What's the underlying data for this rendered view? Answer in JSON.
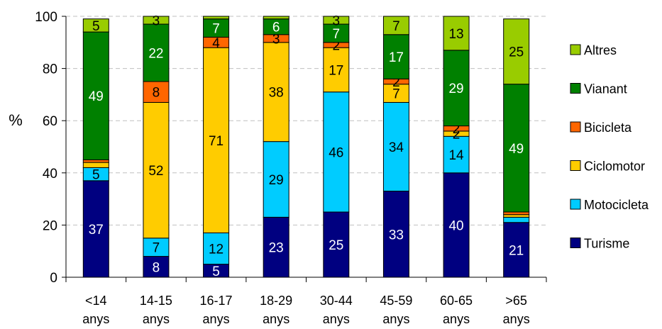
{
  "chart_data": {
    "type": "bar",
    "stacked": true,
    "ylabel": "%",
    "ylim": [
      0,
      100
    ],
    "yticks": [
      "0",
      "20",
      "40",
      "60",
      "80",
      "100"
    ],
    "grid": true,
    "legend_position": "right",
    "categories": [
      {
        "line1": "<14",
        "line2": "anys"
      },
      {
        "line1": "14-15",
        "line2": "anys"
      },
      {
        "line1": "16-17",
        "line2": "anys"
      },
      {
        "line1": "18-29",
        "line2": "anys"
      },
      {
        "line1": "30-44",
        "line2": "anys"
      },
      {
        "line1": "45-59",
        "line2": "anys"
      },
      {
        "line1": "60-65",
        "line2": "anys"
      },
      {
        "line1": ">65",
        "line2": "anys"
      }
    ],
    "series": [
      {
        "name": "Turisme",
        "color": "#000080",
        "label_color": "#ffffff",
        "values": [
          37,
          8,
          5,
          23,
          25,
          33,
          40,
          21
        ],
        "labels": [
          "37",
          "8",
          "5",
          "23",
          "25",
          "33",
          "40",
          "21"
        ]
      },
      {
        "name": "Motocicleta",
        "color": "#00ccff",
        "label_color": "#000000",
        "values": [
          5,
          7,
          12,
          29,
          46,
          34,
          14,
          2
        ],
        "labels": [
          "5",
          "7",
          "12",
          "29",
          "46",
          "34",
          "14",
          ""
        ]
      },
      {
        "name": "Ciclomotor",
        "color": "#ffcc00",
        "label_color": "#000000",
        "values": [
          2,
          52,
          71,
          38,
          17,
          7,
          2,
          1
        ],
        "labels": [
          "",
          "52",
          "71",
          "38",
          "17",
          "7",
          "2",
          ""
        ]
      },
      {
        "name": "Bicicleta",
        "color": "#ff6600",
        "label_color": "#000000",
        "values": [
          1,
          8,
          4,
          3,
          2,
          2,
          2,
          1
        ],
        "labels": [
          "",
          "8",
          "4",
          "3",
          "2",
          "2",
          "2",
          ""
        ]
      },
      {
        "name": "Vianant",
        "color": "#008000",
        "label_color": "#ffffff",
        "values": [
          49,
          22,
          7,
          6,
          7,
          17,
          29,
          49
        ],
        "labels": [
          "49",
          "22",
          "7",
          "6",
          "7",
          "17",
          "29",
          "49"
        ]
      },
      {
        "name": "Altres",
        "color": "#99cc00",
        "label_color": "#000000",
        "values": [
          5,
          3,
          1,
          1,
          3,
          7,
          13,
          25
        ],
        "labels": [
          "5",
          "3",
          "",
          "",
          "3",
          "7",
          "13",
          "25"
        ]
      }
    ],
    "legend_order": [
      "Altres",
      "Vianant",
      "Bicicleta",
      "Ciclomotor",
      "Motocicleta",
      "Turisme"
    ]
  }
}
